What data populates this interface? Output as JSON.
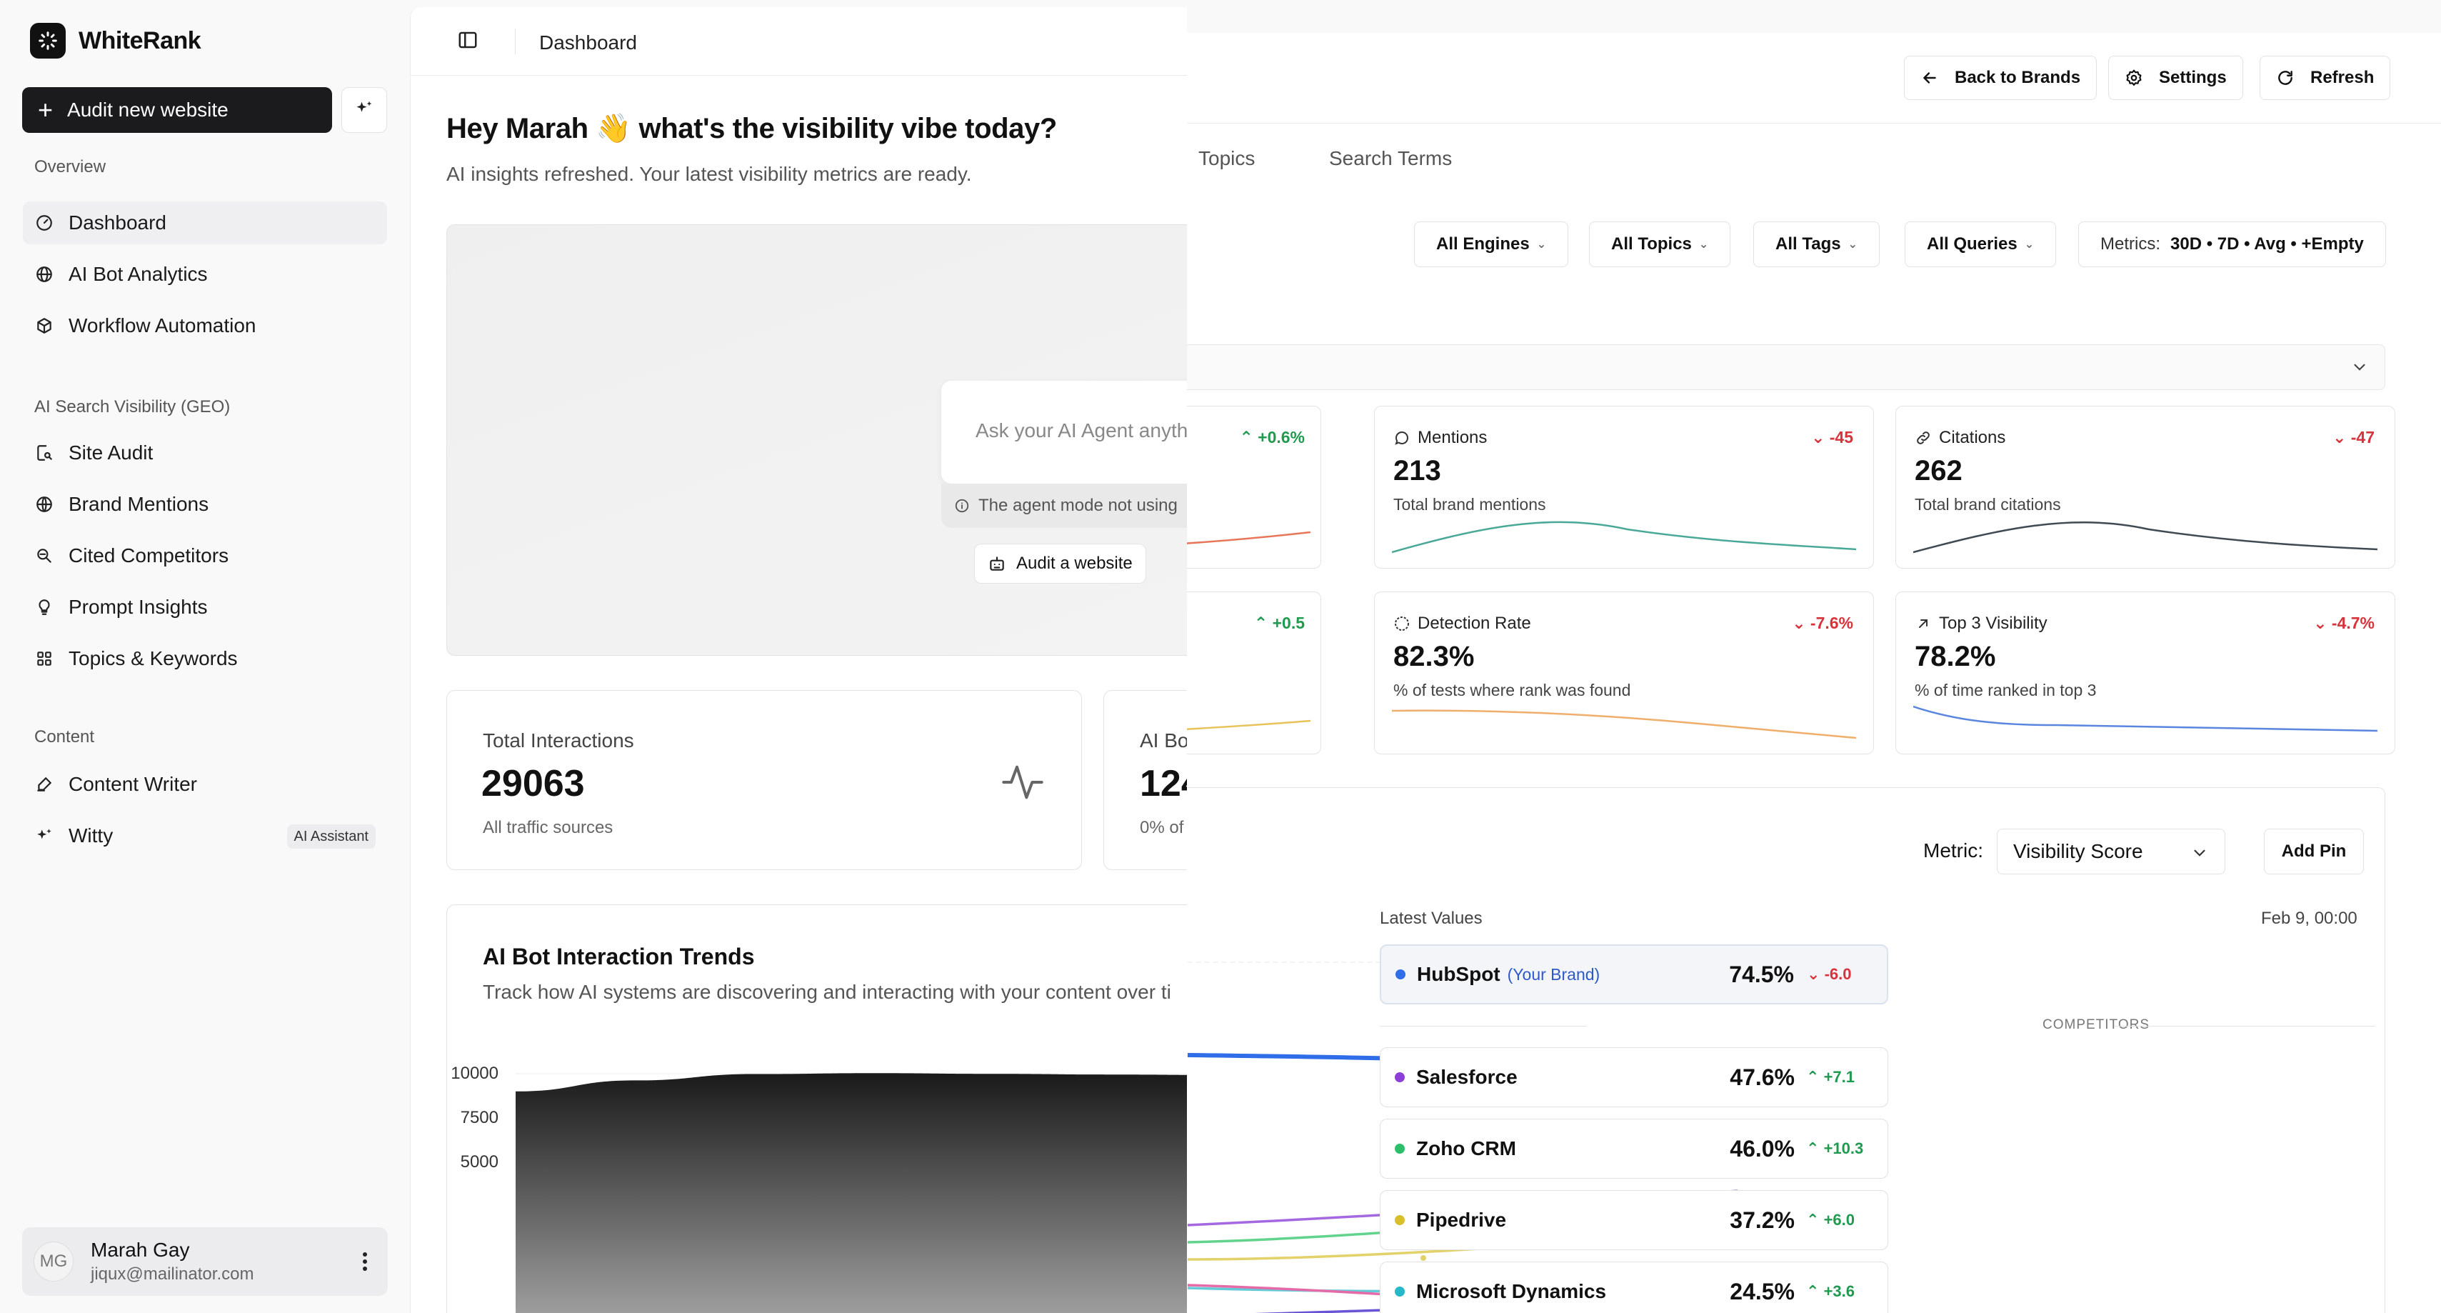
{
  "app": {
    "name": "WhiteRank"
  },
  "sidebar": {
    "audit_button": "Audit new website",
    "sections": {
      "overview": "Overview",
      "geo": "AI Search Visibility (GEO)",
      "content": "Content"
    },
    "items": [
      {
        "label": "Dashboard",
        "icon": "dashboard-icon",
        "active": true
      },
      {
        "label": "AI Bot Analytics",
        "icon": "globe-icon"
      },
      {
        "label": "Workflow Automation",
        "icon": "cube-icon"
      },
      {
        "label": "Site Audit",
        "icon": "site-audit-icon"
      },
      {
        "label": "Brand Mentions",
        "icon": "globe-icon"
      },
      {
        "label": "Cited Competitors",
        "icon": "competitors-icon"
      },
      {
        "label": "Prompt Insights",
        "icon": "insights-icon"
      },
      {
        "label": "Topics & Keywords",
        "icon": "topics-icon"
      },
      {
        "label": "Content Writer",
        "icon": "writer-icon"
      },
      {
        "label": "Witty",
        "icon": "sparkles-icon",
        "badge": "AI Assistant"
      }
    ],
    "user": {
      "initials": "MG",
      "name": "Marah Gay",
      "email": "jiqux@mailinator.com"
    }
  },
  "center": {
    "breadcrumb": "Dashboard",
    "greeting": "Hey Marah 👋 what's the visibility vibe today?",
    "greeting_sub": "AI insights refreshed. Your latest visibility metrics are ready.",
    "agent": {
      "placeholder": "Ask your AI Agent anyth",
      "note": "The agent mode not using",
      "audit_button": "Audit a website"
    },
    "stats": [
      {
        "label": "Total Interactions",
        "value": "29063",
        "sub": "All traffic sources"
      },
      {
        "label": "AI Bo",
        "value": "124",
        "sub": "0% of"
      }
    ],
    "trend": {
      "title": "AI Bot Interaction Trends",
      "subtitle": "Track how AI systems are discovering and interacting with your content over ti"
    }
  },
  "chart_data": {
    "type": "area",
    "title": "AI Bot Interaction Trends",
    "y_ticks": [
      "10000",
      "7500",
      "5000"
    ],
    "ylim": [
      2500,
      10000
    ],
    "x": [
      0,
      1,
      2,
      3,
      4,
      5,
      6
    ],
    "values": [
      9000,
      9620,
      9980,
      10030,
      9990,
      9950,
      9920
    ],
    "grid": true
  },
  "right": {
    "header_buttons": {
      "back": "Back to Brands",
      "settings": "Settings",
      "refresh": "Refresh"
    },
    "tabs": [
      "Topics",
      "Search Terms"
    ],
    "filters": [
      "All Engines",
      "All Topics",
      "All Tags",
      "All Queries"
    ],
    "metrics_filter": {
      "label": "Metrics:",
      "value": "30D • 7D • Avg • +Empty"
    },
    "partial_cards": [
      {
        "delta": "+0.6%",
        "direction": "up",
        "color": "#e8775a"
      },
      {
        "delta": "+0.5",
        "direction": "up",
        "color": "#e8c25a"
      }
    ],
    "metric_cards": [
      {
        "title": "Mentions",
        "icon": "chat-icon",
        "delta": "-45",
        "value": "213",
        "sub": "Total brand mentions",
        "color": "#4aa898"
      },
      {
        "title": "Citations",
        "icon": "link-icon",
        "delta": "-47",
        "value": "262",
        "sub": "Total brand citations",
        "color": "#3f4a52"
      },
      {
        "title": "Detection Rate",
        "icon": "target-icon",
        "delta": "-7.6%",
        "value": "82.3%",
        "sub": "% of tests where rank was found",
        "color": "#efae6a"
      },
      {
        "title": "Top 3 Visibility",
        "icon": "arrow-up-right-icon",
        "delta": "-4.7%",
        "value": "78.2%",
        "sub": "% of time ranked in top 3",
        "color": "#5a86e0"
      }
    ],
    "metric_label": "Metric:",
    "metric_selected": "Visibility Score",
    "add_pin": "Add Pin",
    "latest_values_label": "Latest Values",
    "latest_time": "Feb 9, 00:00",
    "own_brand": {
      "name": "HubSpot",
      "tag": "(Your Brand)",
      "value": "74.5%",
      "delta": "-6.0",
      "color": "#2f6ee8"
    },
    "competitors_label": "COMPETITORS",
    "competitors": [
      {
        "name": "Salesforce",
        "value": "47.6%",
        "delta": "+7.1",
        "color": "#8d3fd8"
      },
      {
        "name": "Zoho CRM",
        "value": "46.0%",
        "delta": "+10.3",
        "color": "#2bbf6a"
      },
      {
        "name": "Pipedrive",
        "value": "37.2%",
        "delta": "+6.0",
        "color": "#d7c02a"
      },
      {
        "name": "Microsoft Dynamics",
        "value": "24.5%",
        "delta": "+3.6",
        "color": "#27b8c9"
      }
    ]
  }
}
